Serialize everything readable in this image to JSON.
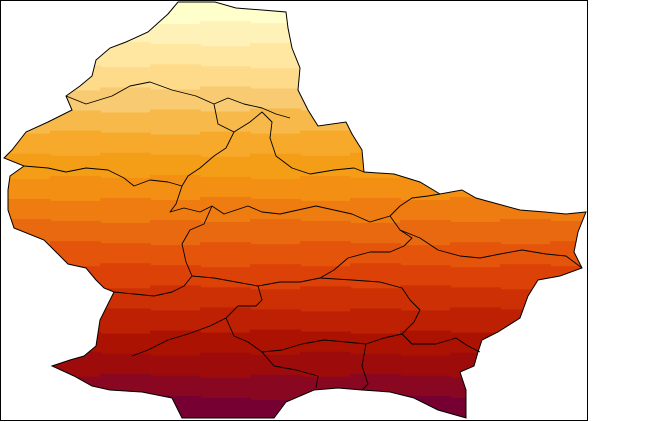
{
  "map": {
    "type": "choropleth-raster",
    "legend": "none",
    "palette": [
      "#ffffcc",
      "#fff2b8",
      "#ffe6a1",
      "#fddb8a",
      "#f8cb72",
      "#f6b94a",
      "#f6a92a",
      "#f49e17",
      "#f38f12",
      "#ee7c11",
      "#e8690f",
      "#e4550b",
      "#dc4208",
      "#cc3004",
      "#bd2003",
      "#ac1202",
      "#9d0c0b",
      "#8a0722",
      "#750031"
    ],
    "outline_color": "#000000",
    "district_count": 12
  }
}
